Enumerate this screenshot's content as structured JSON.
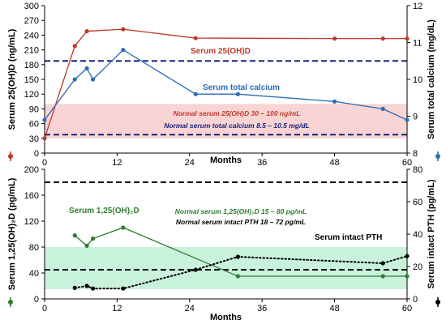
{
  "chart_data": [
    {
      "type": "line",
      "x": {
        "label": "Months",
        "lim": [
          0,
          60
        ],
        "ticks": [
          0,
          12,
          24,
          36,
          48,
          60
        ]
      },
      "y_left": {
        "label": "Serum 25(OH)D (ng/mL)",
        "lim": [
          0,
          300
        ],
        "ticks": [
          0,
          30,
          60,
          90,
          120,
          150,
          180,
          210,
          240,
          270,
          300
        ]
      },
      "y_right": {
        "label": "Serum total calcium (mg/dL)",
        "lim": [
          8,
          12
        ],
        "ticks": [
          8,
          9,
          10,
          11,
          12
        ]
      },
      "grid": false,
      "series": [
        {
          "name": "Serum 25(OH)D",
          "axis": "left",
          "color": "#c0392b",
          "points": [
            [
              0,
              30
            ],
            [
              5,
              218
            ],
            [
              7,
              248
            ],
            [
              13,
              252
            ],
            [
              25,
              234
            ],
            [
              48,
              233
            ],
            [
              56,
              233
            ],
            [
              60,
              233
            ]
          ]
        },
        {
          "name": "Serum total calcium",
          "axis": "right",
          "color": "#2e6bb5",
          "points": [
            [
              0,
              8.9
            ],
            [
              5,
              10.0
            ],
            [
              7,
              10.3
            ],
            [
              8,
              10.0
            ],
            [
              13,
              10.8
            ],
            [
              25,
              9.6
            ],
            [
              32,
              9.6
            ],
            [
              48,
              9.4
            ],
            [
              56,
              9.2
            ],
            [
              60,
              8.9
            ]
          ]
        }
      ],
      "reference_band": {
        "axis": "left",
        "from": 30,
        "to": 100,
        "color": "#f8d4d4"
      },
      "reference_lines": [
        {
          "axis": "right",
          "value": 8.5,
          "color": "#1a237e",
          "style": "dashed"
        },
        {
          "axis": "right",
          "value": 10.5,
          "color": "#1a237e",
          "style": "dashed"
        }
      ],
      "annotations": [
        {
          "text": "Normal serum  25(OH)D 30 – 100 ng/mL",
          "color": "#c0392b"
        },
        {
          "text": "Normal serum total calcium 8.5 – 10.5 mg/dL",
          "color": "#1a237e"
        }
      ]
    },
    {
      "type": "line",
      "x": {
        "label": "Months",
        "lim": [
          0,
          60
        ],
        "ticks": [
          0,
          12,
          24,
          36,
          48,
          60
        ]
      },
      "y_left": {
        "label": "Serum 1,25(OH)₂D (pg/mL)",
        "lim": [
          0,
          200
        ],
        "ticks": [
          0,
          40,
          80,
          120,
          160,
          200
        ]
      },
      "y_right": {
        "label": "Serum intact PTH (pg/mL)",
        "lim": [
          0,
          80
        ],
        "ticks": [
          0,
          20,
          40,
          60,
          80
        ]
      },
      "grid": false,
      "series": [
        {
          "name": "Serum 1,25(OH)₂D",
          "axis": "left",
          "color": "#2e7d32",
          "points": [
            [
              5,
              98
            ],
            [
              7,
              82
            ],
            [
              8,
              93
            ],
            [
              13,
              110
            ],
            [
              32,
              35
            ],
            [
              56,
              35
            ],
            [
              60,
              35
            ]
          ]
        },
        {
          "name": "Serum intact PTH",
          "axis": "right",
          "color": "#000000",
          "style": "dotted",
          "points": [
            [
              5,
              6.8
            ],
            [
              7,
              8
            ],
            [
              8,
              6.4
            ],
            [
              13,
              6.4
            ],
            [
              25,
              18
            ],
            [
              32,
              26
            ],
            [
              56,
              22
            ],
            [
              60,
              26.4
            ]
          ]
        }
      ],
      "reference_band": {
        "axis": "left",
        "from": 15,
        "to": 80,
        "color": "#c9f2dc"
      },
      "reference_lines": [
        {
          "axis": "right",
          "value": 18,
          "color": "#000000",
          "style": "dashed"
        },
        {
          "axis": "right",
          "value": 72,
          "color": "#000000",
          "style": "dashed"
        }
      ],
      "annotations": [
        {
          "text": "Normal serum 1,25(OH)₂D 15 – 80 pg/mL",
          "color": "#2e7d32"
        },
        {
          "text": "Normal serum intact PTH 18 – 72 pg/mL",
          "color": "#000000"
        }
      ]
    }
  ]
}
